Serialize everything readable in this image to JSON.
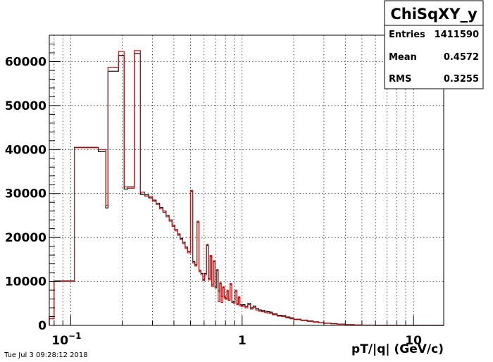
{
  "timestamp": "Tue Jul  3 09:28:12 2018",
  "stats": {
    "title": "ChiSqXY_y",
    "rows": [
      {
        "label": "Entries",
        "value": "1411590"
      },
      {
        "label": "Mean",
        "value": "0.4572"
      },
      {
        "label": "RMS",
        "value": "0.3255"
      }
    ]
  },
  "chart_data": {
    "type": "histogram",
    "title": "ChiSqXY_y",
    "xlabel": "pT/|q| (GeV/c)",
    "ylabel": "",
    "xscale": "log",
    "xlim": [
      0.075,
      15
    ],
    "ylim": [
      0,
      66000
    ],
    "grid": true,
    "x_ticks": [
      {
        "value": 0.1,
        "base": "10",
        "exp": "−1"
      },
      {
        "value": 1,
        "base": "1",
        "exp": ""
      },
      {
        "value": 10,
        "base": "10",
        "exp": ""
      }
    ],
    "y_ticks": [
      0,
      10000,
      20000,
      30000,
      40000,
      50000,
      60000
    ],
    "y_tick_labels": [
      "0",
      "10000",
      "20000",
      "30000",
      "40000",
      "50000",
      "60000"
    ],
    "colors": {
      "black_series": "#000000",
      "red_series": "#d01010"
    },
    "series": [
      {
        "color": "#000000",
        "bins": [
          [
            0.075,
            0.08,
            2000
          ],
          [
            0.08,
            0.105,
            10100
          ],
          [
            0.105,
            0.145,
            40500
          ],
          [
            0.145,
            0.16,
            39500
          ],
          [
            0.16,
            0.165,
            26700
          ],
          [
            0.165,
            0.19,
            57800
          ],
          [
            0.19,
            0.205,
            61400
          ],
          [
            0.205,
            0.215,
            31000
          ],
          [
            0.215,
            0.235,
            31500
          ],
          [
            0.235,
            0.255,
            61800
          ],
          [
            0.255,
            0.27,
            29800
          ],
          [
            0.27,
            0.285,
            29700
          ],
          [
            0.285,
            0.3,
            29000
          ],
          [
            0.3,
            0.315,
            28500
          ],
          [
            0.315,
            0.33,
            27800
          ],
          [
            0.33,
            0.345,
            26800
          ],
          [
            0.345,
            0.36,
            26000
          ],
          [
            0.36,
            0.375,
            25000
          ],
          [
            0.375,
            0.39,
            24000
          ],
          [
            0.39,
            0.405,
            22800
          ],
          [
            0.405,
            0.42,
            21800
          ],
          [
            0.42,
            0.435,
            20800
          ],
          [
            0.435,
            0.45,
            19800
          ],
          [
            0.45,
            0.465,
            18900
          ],
          [
            0.465,
            0.48,
            17800
          ],
          [
            0.48,
            0.5,
            16800
          ],
          [
            0.5,
            0.515,
            30500
          ],
          [
            0.515,
            0.53,
            14500
          ],
          [
            0.53,
            0.545,
            13800
          ],
          [
            0.545,
            0.56,
            23500
          ],
          [
            0.56,
            0.575,
            12500
          ],
          [
            0.575,
            0.59,
            11800
          ],
          [
            0.59,
            0.605,
            10500
          ],
          [
            0.605,
            0.62,
            11800
          ],
          [
            0.62,
            0.635,
            18200
          ],
          [
            0.635,
            0.65,
            10600
          ],
          [
            0.65,
            0.665,
            15700
          ],
          [
            0.665,
            0.68,
            9200
          ],
          [
            0.68,
            0.695,
            14500
          ],
          [
            0.695,
            0.71,
            8800
          ],
          [
            0.71,
            0.725,
            12500
          ],
          [
            0.725,
            0.74,
            7800
          ],
          [
            0.74,
            0.755,
            9500
          ],
          [
            0.755,
            0.77,
            6600
          ],
          [
            0.77,
            0.785,
            8600
          ],
          [
            0.785,
            0.8,
            6500
          ],
          [
            0.8,
            0.815,
            6200
          ],
          [
            0.815,
            0.83,
            7800
          ],
          [
            0.83,
            0.85,
            6000
          ],
          [
            0.85,
            0.87,
            9300
          ],
          [
            0.87,
            0.89,
            5500
          ],
          [
            0.89,
            0.91,
            5300
          ],
          [
            0.91,
            0.93,
            7800
          ],
          [
            0.93,
            0.95,
            5000
          ],
          [
            0.95,
            0.97,
            6300
          ],
          [
            0.97,
            0.99,
            4700
          ],
          [
            0.99,
            1.01,
            4600
          ],
          [
            1.01,
            1.04,
            4700
          ],
          [
            1.04,
            1.08,
            4300
          ],
          [
            1.08,
            1.12,
            5000
          ],
          [
            1.12,
            1.16,
            4000
          ],
          [
            1.16,
            1.2,
            4400
          ],
          [
            1.2,
            1.25,
            3800
          ],
          [
            1.25,
            1.3,
            3500
          ],
          [
            1.3,
            1.35,
            3400
          ],
          [
            1.35,
            1.4,
            3200
          ],
          [
            1.4,
            1.45,
            3100
          ],
          [
            1.45,
            1.5,
            3000
          ],
          [
            1.5,
            1.6,
            2600
          ],
          [
            1.6,
            1.7,
            2300
          ],
          [
            1.7,
            1.8,
            2200
          ],
          [
            1.8,
            1.9,
            1900
          ],
          [
            1.9,
            2.0,
            1700
          ],
          [
            2.0,
            2.2,
            1400
          ],
          [
            2.2,
            2.4,
            1200
          ],
          [
            2.4,
            2.6,
            1000
          ],
          [
            2.6,
            2.8,
            800
          ],
          [
            2.8,
            3.0,
            650
          ],
          [
            3.0,
            3.3,
            500
          ],
          [
            3.3,
            3.6,
            380
          ],
          [
            3.6,
            4.0,
            280
          ],
          [
            4.0,
            4.5,
            180
          ],
          [
            4.5,
            5.0,
            100
          ],
          [
            5.0,
            6.0,
            60
          ],
          [
            6.0,
            15,
            0
          ]
        ]
      },
      {
        "color": "#d01010",
        "bins": [
          [
            0.075,
            0.08,
            1500
          ],
          [
            0.08,
            0.105,
            10000
          ],
          [
            0.105,
            0.145,
            40400
          ],
          [
            0.145,
            0.16,
            40000
          ],
          [
            0.16,
            0.165,
            27300
          ],
          [
            0.165,
            0.19,
            58700
          ],
          [
            0.19,
            0.205,
            62300
          ],
          [
            0.205,
            0.215,
            31500
          ],
          [
            0.215,
            0.235,
            31200
          ],
          [
            0.235,
            0.255,
            62500
          ],
          [
            0.255,
            0.27,
            30300
          ],
          [
            0.27,
            0.285,
            29400
          ],
          [
            0.285,
            0.3,
            29300
          ],
          [
            0.3,
            0.315,
            28200
          ],
          [
            0.315,
            0.33,
            27500
          ],
          [
            0.33,
            0.345,
            26500
          ],
          [
            0.345,
            0.36,
            25700
          ],
          [
            0.36,
            0.375,
            24700
          ],
          [
            0.375,
            0.39,
            23700
          ],
          [
            0.39,
            0.405,
            22500
          ],
          [
            0.405,
            0.42,
            21500
          ],
          [
            0.42,
            0.435,
            20500
          ],
          [
            0.435,
            0.45,
            19500
          ],
          [
            0.45,
            0.465,
            18600
          ],
          [
            0.465,
            0.48,
            17500
          ],
          [
            0.48,
            0.5,
            16500
          ],
          [
            0.5,
            0.515,
            30700
          ],
          [
            0.515,
            0.53,
            14200
          ],
          [
            0.53,
            0.545,
            13500
          ],
          [
            0.545,
            0.56,
            23700
          ],
          [
            0.56,
            0.575,
            12200
          ],
          [
            0.575,
            0.59,
            11500
          ],
          [
            0.59,
            0.605,
            10200
          ],
          [
            0.605,
            0.62,
            11500
          ],
          [
            0.62,
            0.635,
            18400
          ],
          [
            0.635,
            0.65,
            10300
          ],
          [
            0.65,
            0.665,
            15900
          ],
          [
            0.665,
            0.68,
            8900
          ],
          [
            0.68,
            0.695,
            14700
          ],
          [
            0.695,
            0.71,
            8500
          ],
          [
            0.71,
            0.725,
            12700
          ],
          [
            0.725,
            0.74,
            5400
          ],
          [
            0.74,
            0.755,
            9700
          ],
          [
            0.755,
            0.77,
            5200
          ],
          [
            0.77,
            0.785,
            8800
          ],
          [
            0.785,
            0.8,
            6200
          ],
          [
            0.8,
            0.815,
            5900
          ],
          [
            0.815,
            0.83,
            8000
          ],
          [
            0.83,
            0.85,
            5700
          ],
          [
            0.85,
            0.87,
            9500
          ],
          [
            0.87,
            0.89,
            5200
          ],
          [
            0.89,
            0.91,
            5000
          ],
          [
            0.91,
            0.93,
            8000
          ],
          [
            0.93,
            0.95,
            4700
          ],
          [
            0.95,
            0.97,
            6500
          ],
          [
            0.97,
            0.99,
            4400
          ],
          [
            0.99,
            1.01,
            4300
          ],
          [
            1.01,
            1.04,
            4400
          ],
          [
            1.04,
            1.08,
            4000
          ],
          [
            1.08,
            1.12,
            4700
          ],
          [
            1.12,
            1.16,
            3700
          ],
          [
            1.16,
            1.2,
            4100
          ],
          [
            1.2,
            1.25,
            3500
          ],
          [
            1.25,
            1.3,
            3200
          ],
          [
            1.3,
            1.35,
            3100
          ],
          [
            1.35,
            1.4,
            2900
          ],
          [
            1.4,
            1.45,
            2800
          ],
          [
            1.45,
            1.5,
            2700
          ],
          [
            1.5,
            1.6,
            2400
          ],
          [
            1.6,
            1.7,
            2100
          ],
          [
            1.7,
            1.8,
            2000
          ],
          [
            1.8,
            1.9,
            1700
          ],
          [
            1.9,
            2.0,
            1500
          ],
          [
            2.0,
            2.2,
            1300
          ],
          [
            2.2,
            2.4,
            1100
          ],
          [
            2.4,
            2.6,
            900
          ],
          [
            2.6,
            2.8,
            700
          ],
          [
            2.8,
            3.0,
            600
          ],
          [
            3.0,
            3.3,
            450
          ],
          [
            3.3,
            3.6,
            340
          ],
          [
            3.6,
            4.0,
            250
          ],
          [
            4.0,
            4.5,
            160
          ],
          [
            4.5,
            5.0,
            90
          ],
          [
            5.0,
            6.0,
            50
          ],
          [
            6.0,
            15,
            0
          ]
        ]
      }
    ]
  }
}
